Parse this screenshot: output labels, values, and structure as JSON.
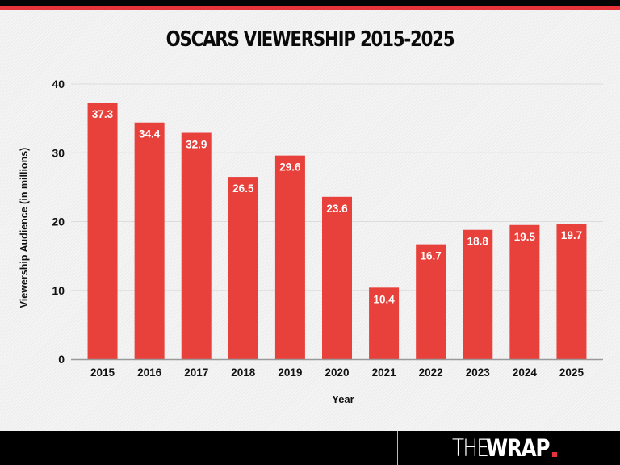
{
  "header": {
    "title": "OSCARS VIEWERSHIP 2015-2025"
  },
  "colors": {
    "bar": "#e8403a",
    "top_bar": "#050505",
    "accent_stripe": "#e8333a",
    "gridline": "#dcdcdc",
    "axis": "#9a9a9a"
  },
  "chart_data": {
    "type": "bar",
    "title": "OSCARS VIEWERSHIP 2015-2025",
    "xlabel": "Year",
    "ylabel": "Viewership Audience (in millions)",
    "categories": [
      "2015",
      "2016",
      "2017",
      "2018",
      "2019",
      "2020",
      "2021",
      "2022",
      "2023",
      "2024",
      "2025"
    ],
    "values": [
      37.3,
      34.4,
      32.9,
      26.5,
      29.6,
      23.6,
      10.4,
      16.7,
      18.8,
      19.5,
      19.7
    ],
    "data_labels": [
      "37.3",
      "34.4",
      "32.9",
      "26.5",
      "29.6",
      "23.6",
      "10.4",
      "16.7",
      "18.8",
      "19.5",
      "19.7"
    ],
    "ylim": [
      0,
      40
    ],
    "yticks": [
      0,
      10,
      20,
      30,
      40
    ],
    "ytick_labels": [
      "0",
      "10",
      "20",
      "30",
      "40"
    ],
    "grid": true,
    "legend": "none"
  },
  "footer": {
    "logo_the": "THE",
    "logo_wrap": "WRAP"
  }
}
